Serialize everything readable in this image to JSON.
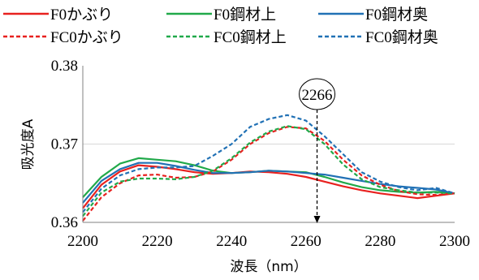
{
  "chart_data": {
    "type": "line",
    "xlabel": "波長（nm）",
    "ylabel": "吸光度A",
    "xlim": [
      2200,
      2300
    ],
    "ylim": [
      0.36,
      0.38
    ],
    "x_ticks": [
      "2200",
      "2220",
      "2240",
      "2260",
      "2280",
      "2300"
    ],
    "y_ticks": [
      "0.36",
      "0.37",
      "0.38"
    ],
    "legend_position": "top",
    "annotation": {
      "label": "2266",
      "x": 2263
    },
    "series": [
      {
        "name": "F0かぶり",
        "color": "#e8211f",
        "dash": "solid",
        "x": [
          2200,
          2205,
          2210,
          2215,
          2220,
          2225,
          2230,
          2235,
          2240,
          2245,
          2250,
          2255,
          2260,
          2265,
          2270,
          2275,
          2280,
          2285,
          2290,
          2295,
          2300
        ],
        "y": [
          0.3618,
          0.3648,
          0.3665,
          0.3673,
          0.3671,
          0.3668,
          0.3664,
          0.3662,
          0.3663,
          0.3665,
          0.3664,
          0.3662,
          0.3658,
          0.3652,
          0.3646,
          0.3641,
          0.3637,
          0.3634,
          0.3631,
          0.3634,
          0.3637
        ]
      },
      {
        "name": "F0鋼材上",
        "color": "#21a94a",
        "dash": "solid",
        "x": [
          2200,
          2205,
          2210,
          2215,
          2220,
          2225,
          2230,
          2235,
          2240,
          2245,
          2250,
          2255,
          2260,
          2265,
          2270,
          2275,
          2280,
          2285,
          2290,
          2295,
          2300
        ],
        "y": [
          0.3632,
          0.3658,
          0.3675,
          0.3682,
          0.368,
          0.3678,
          0.3673,
          0.3666,
          0.3663,
          0.3664,
          0.3666,
          0.3665,
          0.3664,
          0.3658,
          0.3651,
          0.3645,
          0.3641,
          0.3639,
          0.3638,
          0.3639,
          0.3637
        ]
      },
      {
        "name": "F0鋼材奥",
        "color": "#2171b5",
        "dash": "solid",
        "x": [
          2200,
          2205,
          2210,
          2215,
          2220,
          2225,
          2230,
          2235,
          2240,
          2245,
          2250,
          2255,
          2260,
          2265,
          2270,
          2275,
          2280,
          2285,
          2290,
          2295,
          2300
        ],
        "y": [
          0.3625,
          0.3653,
          0.3668,
          0.3676,
          0.3676,
          0.3672,
          0.3667,
          0.3663,
          0.3663,
          0.3664,
          0.3666,
          0.3665,
          0.3663,
          0.3661,
          0.3657,
          0.3653,
          0.3649,
          0.3646,
          0.3644,
          0.3642,
          0.3637
        ]
      },
      {
        "name": "FC0かぶり",
        "color": "#e8211f",
        "dash": "dashed",
        "x": [
          2200,
          2205,
          2210,
          2215,
          2220,
          2225,
          2230,
          2235,
          2240,
          2245,
          2250,
          2255,
          2260,
          2265,
          2270,
          2275,
          2280,
          2285,
          2290,
          2295,
          2300
        ],
        "y": [
          0.3602,
          0.3632,
          0.365,
          0.366,
          0.3661,
          0.3657,
          0.3658,
          0.3665,
          0.368,
          0.37,
          0.3714,
          0.3722,
          0.372,
          0.3704,
          0.368,
          0.366,
          0.3648,
          0.364,
          0.3636,
          0.3635,
          0.3637
        ]
      },
      {
        "name": "FC0鋼材上",
        "color": "#21a94a",
        "dash": "dashed",
        "x": [
          2200,
          2205,
          2210,
          2215,
          2220,
          2225,
          2230,
          2235,
          2240,
          2245,
          2250,
          2255,
          2260,
          2265,
          2270,
          2275,
          2280,
          2285,
          2290,
          2295,
          2300
        ],
        "y": [
          0.3608,
          0.3638,
          0.3652,
          0.3656,
          0.3656,
          0.3655,
          0.3658,
          0.3666,
          0.3682,
          0.3702,
          0.3716,
          0.3723,
          0.3719,
          0.37,
          0.3674,
          0.3655,
          0.3645,
          0.3641,
          0.3638,
          0.3638,
          0.3637
        ]
      },
      {
        "name": "FC0鋼材奥",
        "color": "#2171b5",
        "dash": "dashed",
        "x": [
          2200,
          2205,
          2210,
          2215,
          2220,
          2225,
          2230,
          2235,
          2240,
          2245,
          2250,
          2255,
          2260,
          2265,
          2270,
          2275,
          2280,
          2285,
          2290,
          2295,
          2300
        ],
        "y": [
          0.3613,
          0.3643,
          0.366,
          0.3668,
          0.367,
          0.367,
          0.3672,
          0.3685,
          0.37,
          0.3722,
          0.3732,
          0.3737,
          0.373,
          0.371,
          0.3687,
          0.3664,
          0.3652,
          0.3645,
          0.3641,
          0.3644,
          0.3637
        ]
      }
    ]
  }
}
